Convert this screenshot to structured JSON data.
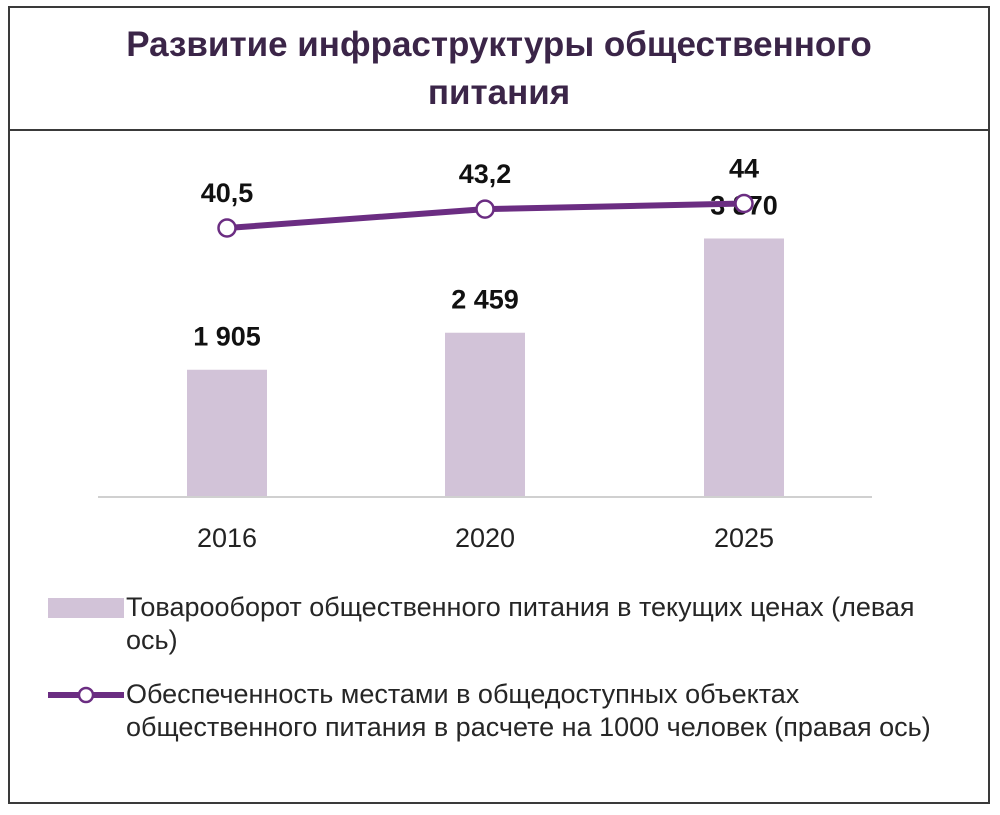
{
  "chart_data": {
    "type": "bar",
    "title": "Развитие инфраструктуры общественного питания",
    "categories": [
      "2016",
      "2020",
      "2025"
    ],
    "series": [
      {
        "name": "Товарооборот общественного питания в текущих ценах (левая ось)",
        "kind": "bar",
        "axis": "left",
        "values": [
          1905,
          2459,
          3870
        ],
        "labels": [
          "1 905",
          "2 459",
          "3 870"
        ],
        "color": "#d2c3d8"
      },
      {
        "name": "Обеспеченность местами в общедоступных объектах общественного питания в расчете на 1000 человек (правая ось)",
        "kind": "line",
        "axis": "right",
        "values": [
          40.5,
          43.2,
          44
        ],
        "labels": [
          "40,5",
          "43,2",
          "44"
        ],
        "color": "#6b2d82"
      }
    ],
    "grid": false,
    "legend_position": "bottom"
  }
}
